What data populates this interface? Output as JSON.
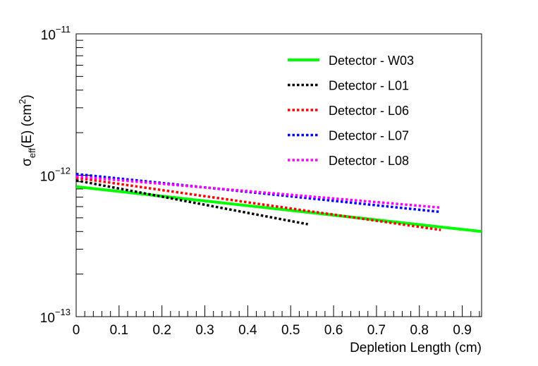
{
  "chart_data": {
    "type": "line",
    "title": "",
    "xlabel": "Depletion Length (cm)",
    "ylabel": {
      "prefix": "σ",
      "sub": "eff",
      "middle": "(E) (cm",
      "sup": "2",
      "suffix": ")"
    },
    "xlim": [
      0,
      0.945
    ],
    "ylim": [
      1e-13,
      1e-11
    ],
    "yscale": "log",
    "x_ticks": [
      {
        "value": 0,
        "label": "0"
      },
      {
        "value": 0.1,
        "label": "0.1"
      },
      {
        "value": 0.2,
        "label": "0.2"
      },
      {
        "value": 0.3,
        "label": "0.3"
      },
      {
        "value": 0.4,
        "label": "0.4"
      },
      {
        "value": 0.5,
        "label": "0.5"
      },
      {
        "value": 0.6,
        "label": "0.6"
      },
      {
        "value": 0.7,
        "label": "0.7"
      },
      {
        "value": 0.8,
        "label": "0.8"
      },
      {
        "value": 0.9,
        "label": "0.9"
      }
    ],
    "y_ticks": [
      {
        "value": 1e-13,
        "base": "10",
        "exp": "−13"
      },
      {
        "value": 1e-12,
        "base": "10",
        "exp": "−12"
      },
      {
        "value": 1e-11,
        "base": "10",
        "exp": "−11"
      }
    ],
    "legend_position": "top-right",
    "series": [
      {
        "name": "Detector - W03",
        "color": "#00ff00",
        "style": "solid",
        "x": [
          0,
          0.945
        ],
        "y": [
          8.3e-13,
          4e-13
        ]
      },
      {
        "name": "Detector - L01",
        "color": "#000000",
        "style": "dotted",
        "x": [
          0,
          0.54
        ],
        "y": [
          9.2e-13,
          4.5e-13
        ]
      },
      {
        "name": "Detector - L06",
        "color": "#ff0000",
        "style": "dotted",
        "x": [
          0,
          0.85
        ],
        "y": [
          9.6e-13,
          4.1e-13
        ]
      },
      {
        "name": "Detector - L07",
        "color": "#0000ff",
        "style": "dotted",
        "x": [
          0,
          0.85
        ],
        "y": [
          1.02e-12,
          5.5e-13
        ]
      },
      {
        "name": "Detector - L08",
        "color": "#ff00ff",
        "style": "dotted",
        "x": [
          0,
          0.85
        ],
        "y": [
          9.8e-13,
          5.9e-13
        ]
      }
    ]
  }
}
